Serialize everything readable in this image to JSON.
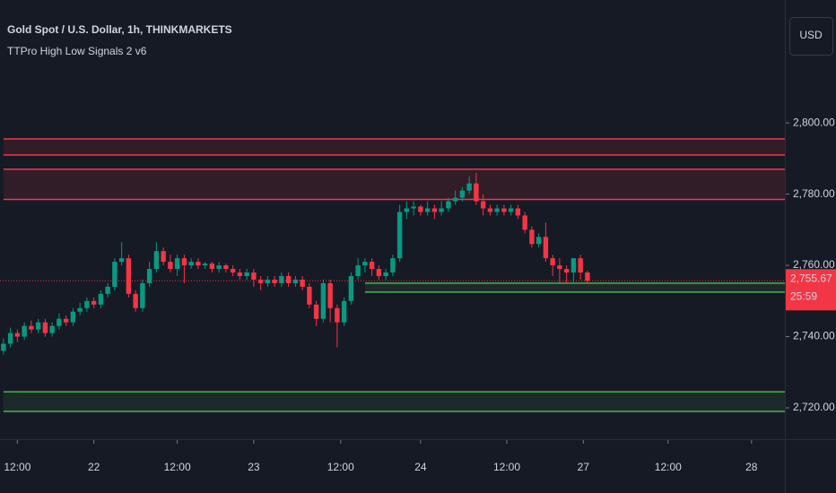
{
  "chart_data": {
    "type": "candlestick",
    "title": "Gold Spot / U.S. Dollar, 1h, THINKMARKETS",
    "indicator": "TTPro High Low Signals 2 v6",
    "currency": "USD",
    "up_color": "#089981",
    "down_color": "#f23645",
    "ylim": [
      2711.2,
      2834.5
    ],
    "yticks": [
      {
        "value": 2720,
        "label": "2,720.00"
      },
      {
        "value": 2740,
        "label": "2,740.00"
      },
      {
        "value": 2760,
        "label": "2,760.00"
      },
      {
        "value": 2780,
        "label": "2,780.00"
      },
      {
        "value": 2800,
        "label": "2,800.00"
      }
    ],
    "xlim": [
      -0.5,
      112.4
    ],
    "xticks": [
      {
        "value": 2,
        "label": "12:00"
      },
      {
        "value": 13,
        "label": "22"
      },
      {
        "value": 25,
        "label": "12:00"
      },
      {
        "value": 36,
        "label": "23"
      },
      {
        "value": 48.5,
        "label": "12:00"
      },
      {
        "value": 60,
        "label": "24"
      },
      {
        "value": 72.4,
        "label": "12:00"
      },
      {
        "value": 83.4,
        "label": "27"
      },
      {
        "value": 95.6,
        "label": "12:00"
      },
      {
        "value": 107.6,
        "label": "28"
      }
    ],
    "candles": [
      [
        2736,
        2739.5,
        2735,
        2738
      ],
      [
        2738,
        2742.5,
        2737,
        2741
      ],
      [
        2741,
        2742,
        2738.5,
        2740
      ],
      [
        2740,
        2744,
        2739,
        2743
      ],
      [
        2743,
        2744.5,
        2741,
        2742
      ],
      [
        2742,
        2745,
        2741,
        2744
      ],
      [
        2744,
        2745,
        2740,
        2741
      ],
      [
        2741,
        2744,
        2740,
        2743
      ],
      [
        2743,
        2746.5,
        2742,
        2745
      ],
      [
        2745,
        2746,
        2743,
        2744
      ],
      [
        2744,
        2748,
        2743,
        2747
      ],
      [
        2747,
        2749.5,
        2746,
        2748
      ],
      [
        2748,
        2751,
        2747,
        2750
      ],
      [
        2750,
        2751,
        2748,
        2749
      ],
      [
        2749,
        2753,
        2748,
        2752
      ],
      [
        2752,
        2755,
        2751,
        2754
      ],
      [
        2754,
        2762,
        2753,
        2761
      ],
      [
        2761,
        2766.5,
        2760,
        2762
      ],
      [
        2762,
        2763,
        2751,
        2752
      ],
      [
        2752,
        2753,
        2747,
        2748
      ],
      [
        2748,
        2756,
        2747,
        2755
      ],
      [
        2755,
        2761,
        2754,
        2759
      ],
      [
        2759,
        2766.5,
        2758,
        2764
      ],
      [
        2764,
        2765,
        2760,
        2761
      ],
      [
        2761,
        2763,
        2758,
        2759
      ],
      [
        2759,
        2763,
        2757,
        2762
      ],
      [
        2762,
        2763,
        2755,
        2760
      ],
      [
        2760,
        2762,
        2759,
        2761
      ],
      [
        2761,
        2762,
        2759,
        2760
      ],
      [
        2760,
        2761,
        2759,
        2760.5
      ],
      [
        2760.5,
        2761,
        2758,
        2759
      ],
      [
        2759,
        2761,
        2758,
        2760
      ],
      [
        2760,
        2760.5,
        2758,
        2759
      ],
      [
        2759,
        2760,
        2757,
        2758
      ],
      [
        2758,
        2759,
        2756,
        2757
      ],
      [
        2757,
        2759,
        2756,
        2758
      ],
      [
        2758,
        2759,
        2754,
        2756
      ],
      [
        2756,
        2757,
        2753,
        2755
      ],
      [
        2755,
        2757,
        2754,
        2756
      ],
      [
        2756,
        2757,
        2754,
        2755
      ],
      [
        2755,
        2758,
        2754,
        2757
      ],
      [
        2757,
        2758,
        2754,
        2755
      ],
      [
        2755,
        2757,
        2754,
        2756
      ],
      [
        2756,
        2757,
        2753,
        2754
      ],
      [
        2754,
        2755,
        2748,
        2749
      ],
      [
        2749,
        2750,
        2743,
        2745
      ],
      [
        2745,
        2756,
        2744,
        2755
      ],
      [
        2755,
        2756,
        2744,
        2748
      ],
      [
        2748,
        2749,
        2737,
        2744
      ],
      [
        2744,
        2751,
        2743,
        2750
      ],
      [
        2750,
        2758,
        2749,
        2757
      ],
      [
        2757,
        2762,
        2756,
        2760
      ],
      [
        2760,
        2762,
        2758,
        2761
      ],
      [
        2761,
        2762,
        2757,
        2759
      ],
      [
        2759,
        2760,
        2756,
        2757
      ],
      [
        2757,
        2759,
        2756,
        2758
      ],
      [
        2758,
        2763,
        2757,
        2762
      ],
      [
        2762,
        2777,
        2761,
        2775
      ],
      [
        2775,
        2778,
        2773,
        2776
      ],
      [
        2776,
        2778,
        2774,
        2776.5
      ],
      [
        2776.5,
        2777,
        2774,
        2775
      ],
      [
        2775,
        2778,
        2774,
        2776
      ],
      [
        2776,
        2777,
        2773,
        2775
      ],
      [
        2775,
        2778,
        2774,
        2776
      ],
      [
        2776,
        2779,
        2775,
        2778
      ],
      [
        2778,
        2781,
        2777,
        2779
      ],
      [
        2779,
        2782,
        2778,
        2781
      ],
      [
        2781,
        2785,
        2780,
        2783
      ],
      [
        2783,
        2786,
        2777,
        2778
      ],
      [
        2778,
        2780,
        2774,
        2776
      ],
      [
        2776,
        2777,
        2774,
        2775
      ],
      [
        2775,
        2777,
        2774,
        2776
      ],
      [
        2776,
        2777,
        2774,
        2775
      ],
      [
        2775,
        2777,
        2774,
        2776
      ],
      [
        2776,
        2777,
        2773,
        2774
      ],
      [
        2774,
        2775,
        2769,
        2770
      ],
      [
        2770,
        2771,
        2765,
        2766
      ],
      [
        2766,
        2769,
        2765,
        2768
      ],
      [
        2768,
        2772,
        2761,
        2762
      ],
      [
        2762,
        2763,
        2757,
        2760
      ],
      [
        2760,
        2762,
        2755,
        2759
      ],
      [
        2759,
        2760,
        2755,
        2758
      ],
      [
        2758,
        2762,
        2755,
        2762
      ],
      [
        2762,
        2763,
        2756,
        2758
      ],
      [
        2758,
        2758.5,
        2755,
        2755.67
      ]
    ],
    "last_price_label": "2,755.67",
    "countdown": "25:59",
    "zones": [
      {
        "top": 2795.5,
        "bottom": 2791,
        "start": 0,
        "color": "#f23645"
      },
      {
        "top": 2787,
        "bottom": 2778.5,
        "start": 0,
        "color": "#f23645"
      },
      {
        "top": 2755,
        "bottom": 2752.5,
        "start": 52,
        "color": "#4caf50"
      },
      {
        "top": 2724.5,
        "bottom": 2719,
        "start": 0,
        "color": "#4caf50"
      }
    ]
  }
}
